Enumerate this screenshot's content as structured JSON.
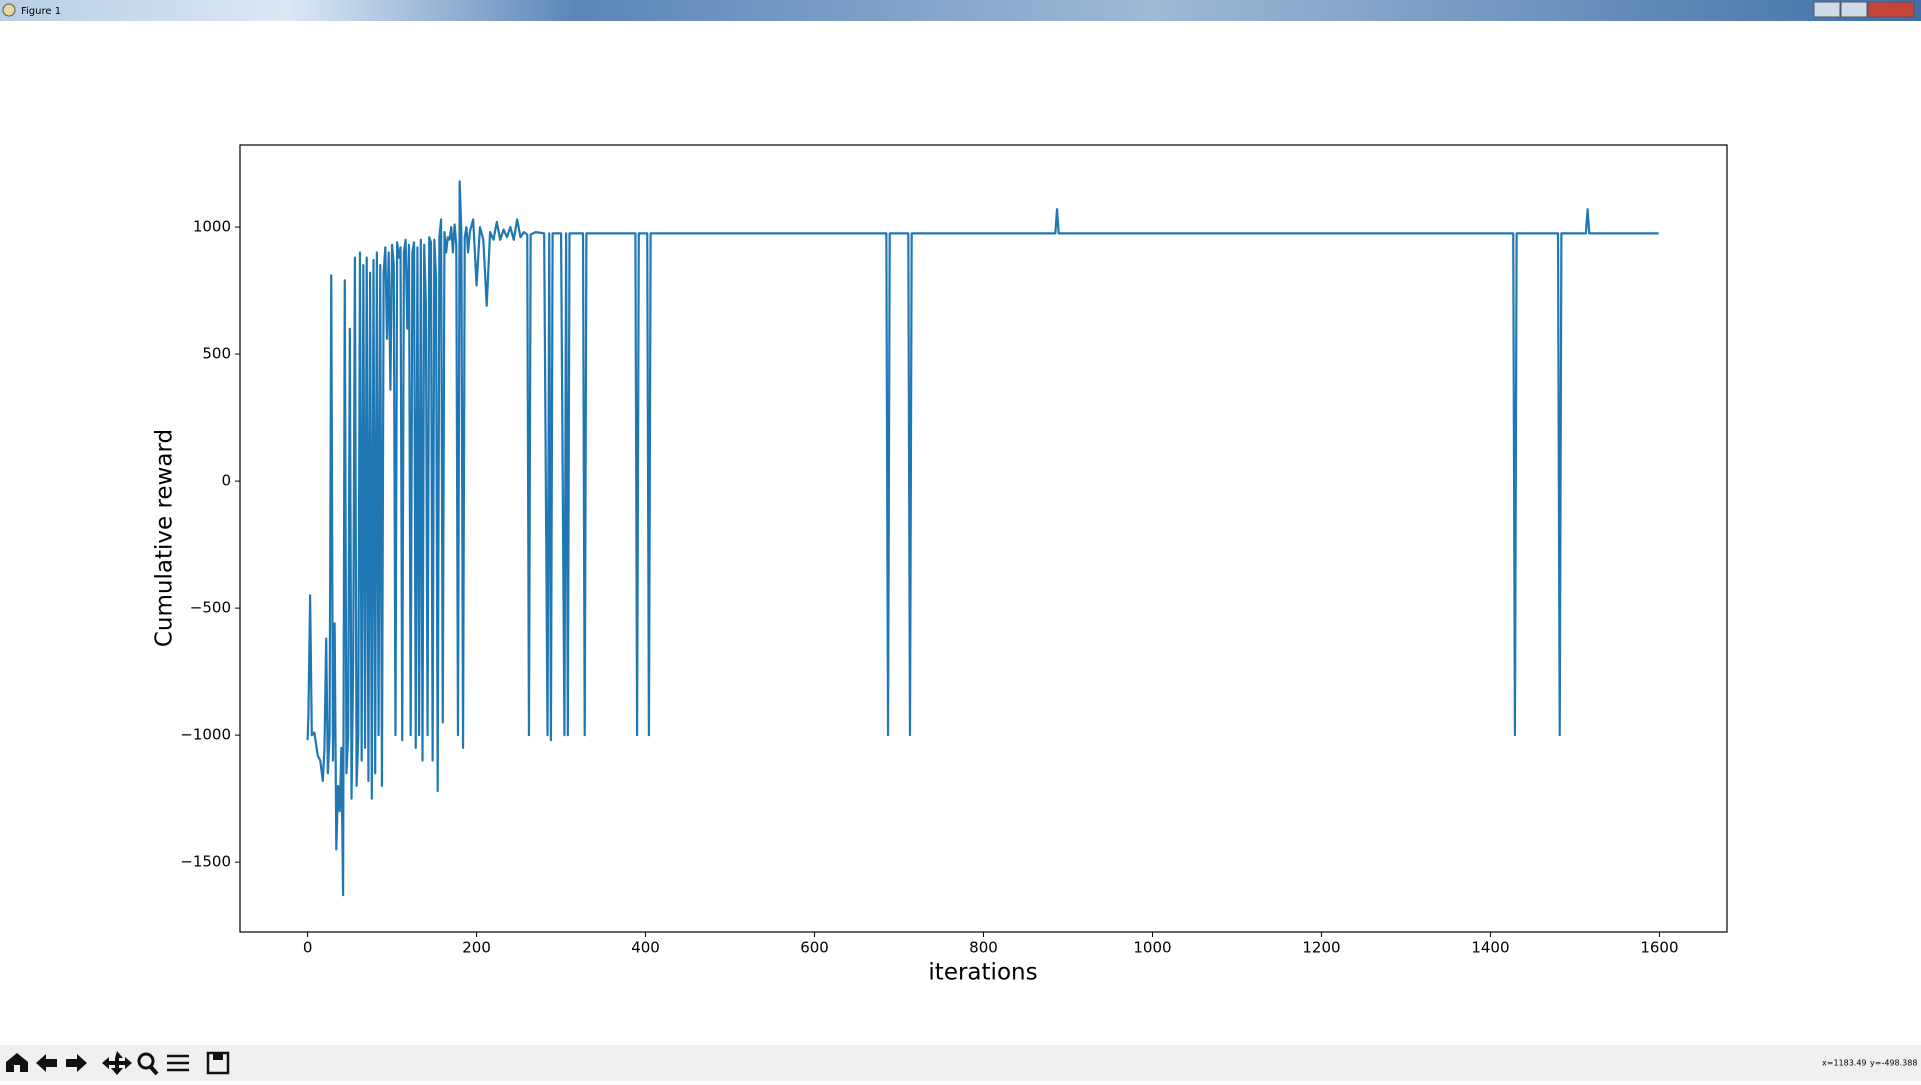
{
  "window": {
    "title": "Figure 1"
  },
  "status": {
    "x_text": "x=1183.49",
    "y_text": "y=-498.388"
  },
  "chart_data": {
    "type": "line",
    "xlabel": "iterations",
    "ylabel": "Cumulative reward",
    "xlim": [
      -80,
      1680
    ],
    "ylim": [
      -1775,
      1323
    ],
    "xticks": [
      0,
      200,
      400,
      600,
      800,
      1000,
      1200,
      1400,
      1600
    ],
    "yticks": [
      {
        "value": -1500,
        "label": "−1500"
      },
      {
        "value": -1000,
        "label": "−1000"
      },
      {
        "value": -500,
        "label": "−500"
      },
      0,
      500,
      1000
    ],
    "x": [
      0,
      1,
      3,
      5,
      8,
      12,
      15,
      18,
      20,
      22,
      24,
      26,
      28,
      30,
      32,
      34,
      36,
      38,
      40,
      42,
      44,
      46,
      48,
      50,
      52,
      54,
      56,
      58,
      60,
      62,
      64,
      66,
      68,
      70,
      72,
      74,
      76,
      78,
      80,
      82,
      84,
      86,
      88,
      90,
      92,
      94,
      96,
      98,
      100,
      102,
      104,
      106,
      108,
      110,
      112,
      114,
      116,
      118,
      120,
      122,
      124,
      126,
      128,
      130,
      132,
      134,
      136,
      138,
      140,
      142,
      144,
      146,
      148,
      150,
      152,
      154,
      156,
      158,
      160,
      162,
      164,
      166,
      168,
      170,
      172,
      174,
      176,
      178,
      180,
      182,
      184,
      186,
      188,
      190,
      192,
      196,
      200,
      204,
      208,
      212,
      216,
      220,
      224,
      228,
      232,
      236,
      240,
      244,
      248,
      252,
      256,
      260,
      262,
      264,
      270,
      280,
      284,
      286,
      288,
      290,
      300,
      304,
      306,
      308,
      310,
      326,
      328,
      330,
      388,
      390,
      392,
      402,
      404,
      406,
      685,
      687,
      689,
      711,
      713,
      715,
      885,
      887,
      889,
      1427,
      1429,
      1431,
      1480,
      1482,
      1484,
      1513,
      1515,
      1517,
      1599
    ],
    "series": [
      {
        "name": "reward",
        "color": "#1f77b4",
        "values": [
          -1020,
          -920,
          -450,
          -1000,
          -990,
          -1080,
          -1100,
          -1180,
          -1050,
          -620,
          -1150,
          -1000,
          810,
          -1100,
          -560,
          -1450,
          -1200,
          -1300,
          -1050,
          -1630,
          790,
          -1150,
          -1000,
          600,
          -1250,
          -700,
          880,
          -1200,
          -1000,
          900,
          -1100,
          850,
          -1050,
          880,
          -1180,
          820,
          -1250,
          870,
          -1150,
          900,
          -1000,
          850,
          -1200,
          820,
          920,
          560,
          900,
          360,
          930,
          850,
          -1000,
          940,
          880,
          920,
          -1020,
          900,
          950,
          600,
          930,
          -1000,
          900,
          940,
          -1050,
          920,
          -1000,
          950,
          -1100,
          930,
          700,
          -1000,
          960,
          940,
          -1100,
          950,
          800,
          -1220,
          960,
          1030,
          -950,
          980,
          900,
          960,
          950,
          1000,
          900,
          1010,
          930,
          -1000,
          1180,
          980,
          -1050,
          960,
          1000,
          900,
          980,
          1030,
          770,
          1000,
          950,
          690,
          980,
          950,
          1020,
          950,
          990,
          960,
          1000,
          950,
          1030,
          960,
          980,
          970,
          -1000,
          970,
          980,
          975,
          -1000,
          975,
          -1020,
          975,
          975,
          -1000,
          975,
          -1000,
          975,
          975,
          -1000,
          975,
          975,
          -1000,
          975,
          975,
          -1000,
          975,
          975,
          -1000,
          975,
          975,
          -1000,
          975,
          975,
          1070,
          975,
          975,
          -1000,
          975,
          975,
          -1000,
          975,
          975,
          1070,
          975,
          975
        ]
      }
    ]
  }
}
